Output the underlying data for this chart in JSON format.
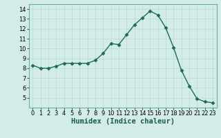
{
  "x": [
    0,
    1,
    2,
    3,
    4,
    5,
    6,
    7,
    8,
    9,
    10,
    11,
    12,
    13,
    14,
    15,
    16,
    17,
    18,
    19,
    20,
    21,
    22,
    23
  ],
  "y": [
    8.3,
    8.0,
    8.0,
    8.2,
    8.5,
    8.5,
    8.5,
    8.5,
    8.8,
    9.5,
    10.5,
    10.4,
    11.4,
    12.4,
    13.1,
    13.8,
    13.4,
    12.1,
    10.1,
    7.8,
    6.2,
    4.9,
    4.6,
    4.5
  ],
  "line_color": "#1a6b5a",
  "marker": "D",
  "marker_size": 2.5,
  "xlabel": "Humidex (Indice chaleur)",
  "xlim": [
    -0.5,
    23.5
  ],
  "ylim": [
    4.0,
    14.5
  ],
  "yticks": [
    5,
    6,
    7,
    8,
    9,
    10,
    11,
    12,
    13,
    14
  ],
  "xticks": [
    0,
    1,
    2,
    3,
    4,
    5,
    6,
    7,
    8,
    9,
    10,
    11,
    12,
    13,
    14,
    15,
    16,
    17,
    18,
    19,
    20,
    21,
    22,
    23
  ],
  "grid_color": "#b8d8d4",
  "bg_color": "#d4ece8",
  "xlabel_fontsize": 7.5,
  "tick_fontsize": 6.0,
  "linewidth": 1.0
}
